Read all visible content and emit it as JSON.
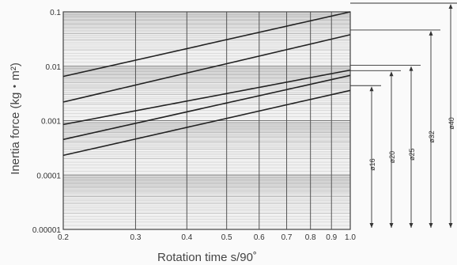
{
  "chart_data": {
    "type": "line",
    "title": "",
    "xlabel": "Rotation time s/90˚",
    "ylabel": "Inertia force (kg・m²)",
    "x_scale": "log",
    "y_scale": "log",
    "xlim": [
      0.2,
      1.0
    ],
    "ylim": [
      1e-05,
      0.1
    ],
    "x_ticks": [
      "0.2",
      "0.3",
      "0.4",
      "0.5",
      "0.6",
      "0.7",
      "0.8",
      "0.9",
      "1.0"
    ],
    "y_ticks": [
      "0.00001",
      "0.0001",
      "0.001",
      "0.01",
      "0.1"
    ],
    "grid": true,
    "series": [
      {
        "name": "ø40",
        "x": [
          0.2,
          1.0
        ],
        "y": [
          0.0065,
          0.1
        ]
      },
      {
        "name": "ø32",
        "x": [
          0.2,
          1.0
        ],
        "y": [
          0.0022,
          0.038
        ]
      },
      {
        "name": "ø25",
        "x": [
          0.2,
          1.0
        ],
        "y": [
          0.00085,
          0.0085
        ]
      },
      {
        "name": "ø20",
        "x": [
          0.2,
          1.0
        ],
        "y": [
          0.00045,
          0.0068
        ]
      },
      {
        "name": "ø16",
        "x": [
          0.2,
          1.0
        ],
        "y": [
          0.00023,
          0.0036
        ]
      }
    ]
  }
}
